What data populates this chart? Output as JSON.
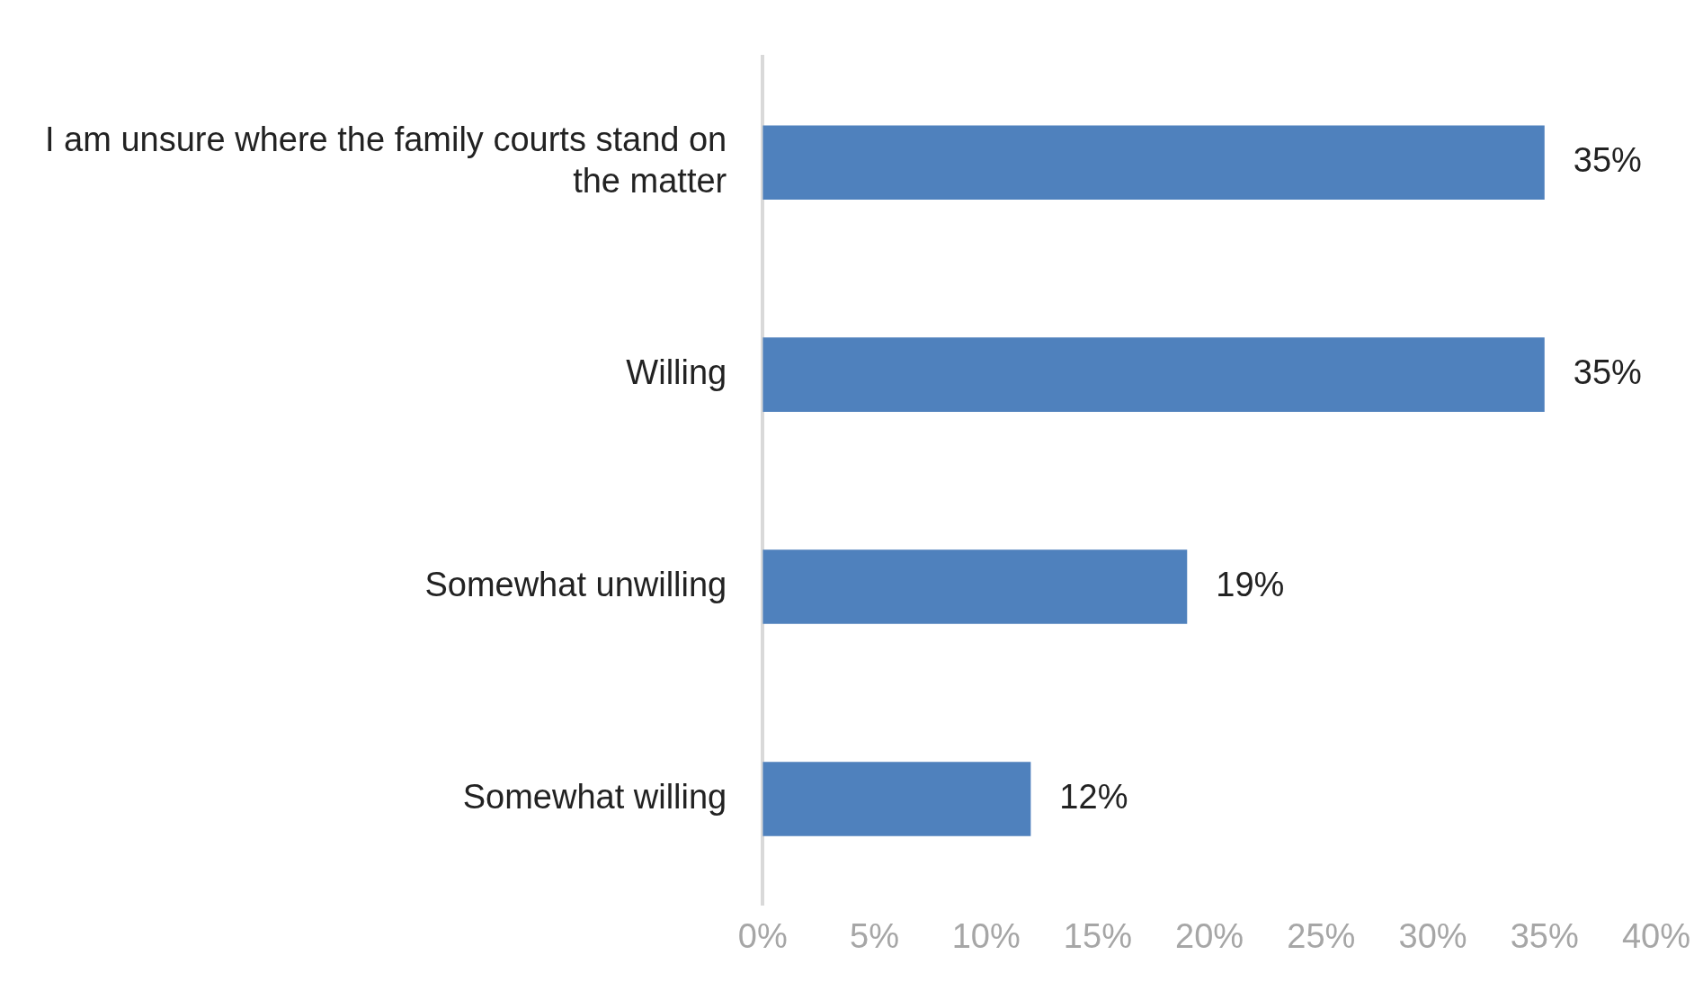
{
  "chart_data": {
    "type": "bar",
    "orientation": "horizontal",
    "categories": [
      "I am unsure where the family courts stand on the matter",
      "Willing",
      "Somewhat unwilling",
      "Somewhat willing"
    ],
    "values": [
      35,
      35,
      19,
      12
    ],
    "color": "#4f81bd",
    "value_labels": [
      "35%",
      "35%",
      "19%",
      "12%"
    ],
    "xlim": [
      0,
      40
    ],
    "xticks": [
      {
        "value": 0,
        "label": "0%"
      },
      {
        "value": 5,
        "label": "5%"
      },
      {
        "value": 10,
        "label": "10%"
      },
      {
        "value": 15,
        "label": "15%"
      },
      {
        "value": 20,
        "label": "20%"
      },
      {
        "value": 25,
        "label": "25%"
      },
      {
        "value": 30,
        "label": "30%"
      },
      {
        "value": 35,
        "label": "35%"
      },
      {
        "value": 40,
        "label": "40%"
      }
    ],
    "grid": false,
    "legend": false
  }
}
